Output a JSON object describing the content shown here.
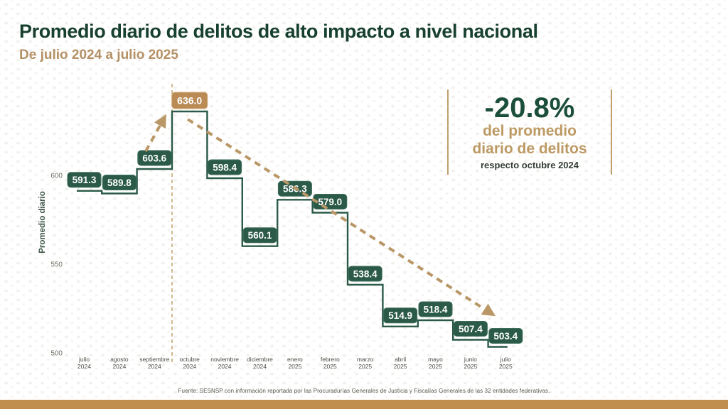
{
  "page": {
    "title": "Promedio diario de delitos de alto impacto a nivel nacional",
    "subtitle": "De julio 2024 a julio 2025",
    "footer": "Fuente: SESNSP con información reportada por las Procuradurías Generales de Justicia y Fiscalías Generales de las 32 entidades federativas."
  },
  "stat": {
    "value": "-20.8%",
    "line1": "del promedio",
    "line2": "diario de delitos",
    "caption": "respecto octubre 2024"
  },
  "colors": {
    "dark_green": "#17402f",
    "step_line": "#2b5a49",
    "label_box": "#2b5a49",
    "label_box_border": "#3e6e5b",
    "label_text": "#ffffff",
    "highlight_box": "#ba8b55",
    "highlight_box_border": "#cda876",
    "tan_accent": "#b99767",
    "dashed_guide": "#c2a06b",
    "axis_text": "#6f6e66",
    "month_text": "#4b4f46",
    "ylabel_text": "#3c5547",
    "bottom_bar": "#c08e4e"
  },
  "chart_data": {
    "type": "line",
    "subtype": "step",
    "title": "Promedio diario de delitos de alto impacto a nivel nacional",
    "categories": [
      "julio 2024",
      "agosto 2024",
      "septiembre 2024",
      "octubre 2024",
      "noviembre 2024",
      "diciembre 2024",
      "enero 2025",
      "febrero 2025",
      "marzo 2025",
      "abril 2025",
      "mayo 2025",
      "junio 2025",
      "julio 2025"
    ],
    "values": [
      591.3,
      589.8,
      603.6,
      636.0,
      598.4,
      560.1,
      586.3,
      579.0,
      538.4,
      514.9,
      518.4,
      507.4,
      503.4
    ],
    "highlight_index": 3,
    "ylabel": "Promedio diario",
    "yticks": [
      600,
      550,
      500
    ],
    "ylim": [
      495,
      650
    ],
    "grid": false,
    "legend": false,
    "markers": {
      "vertical_dashed_at": "octubre 2024",
      "trend_arrows": [
        "ascenso hasta octubre 2024",
        "descenso hasta julio 2025"
      ]
    }
  }
}
